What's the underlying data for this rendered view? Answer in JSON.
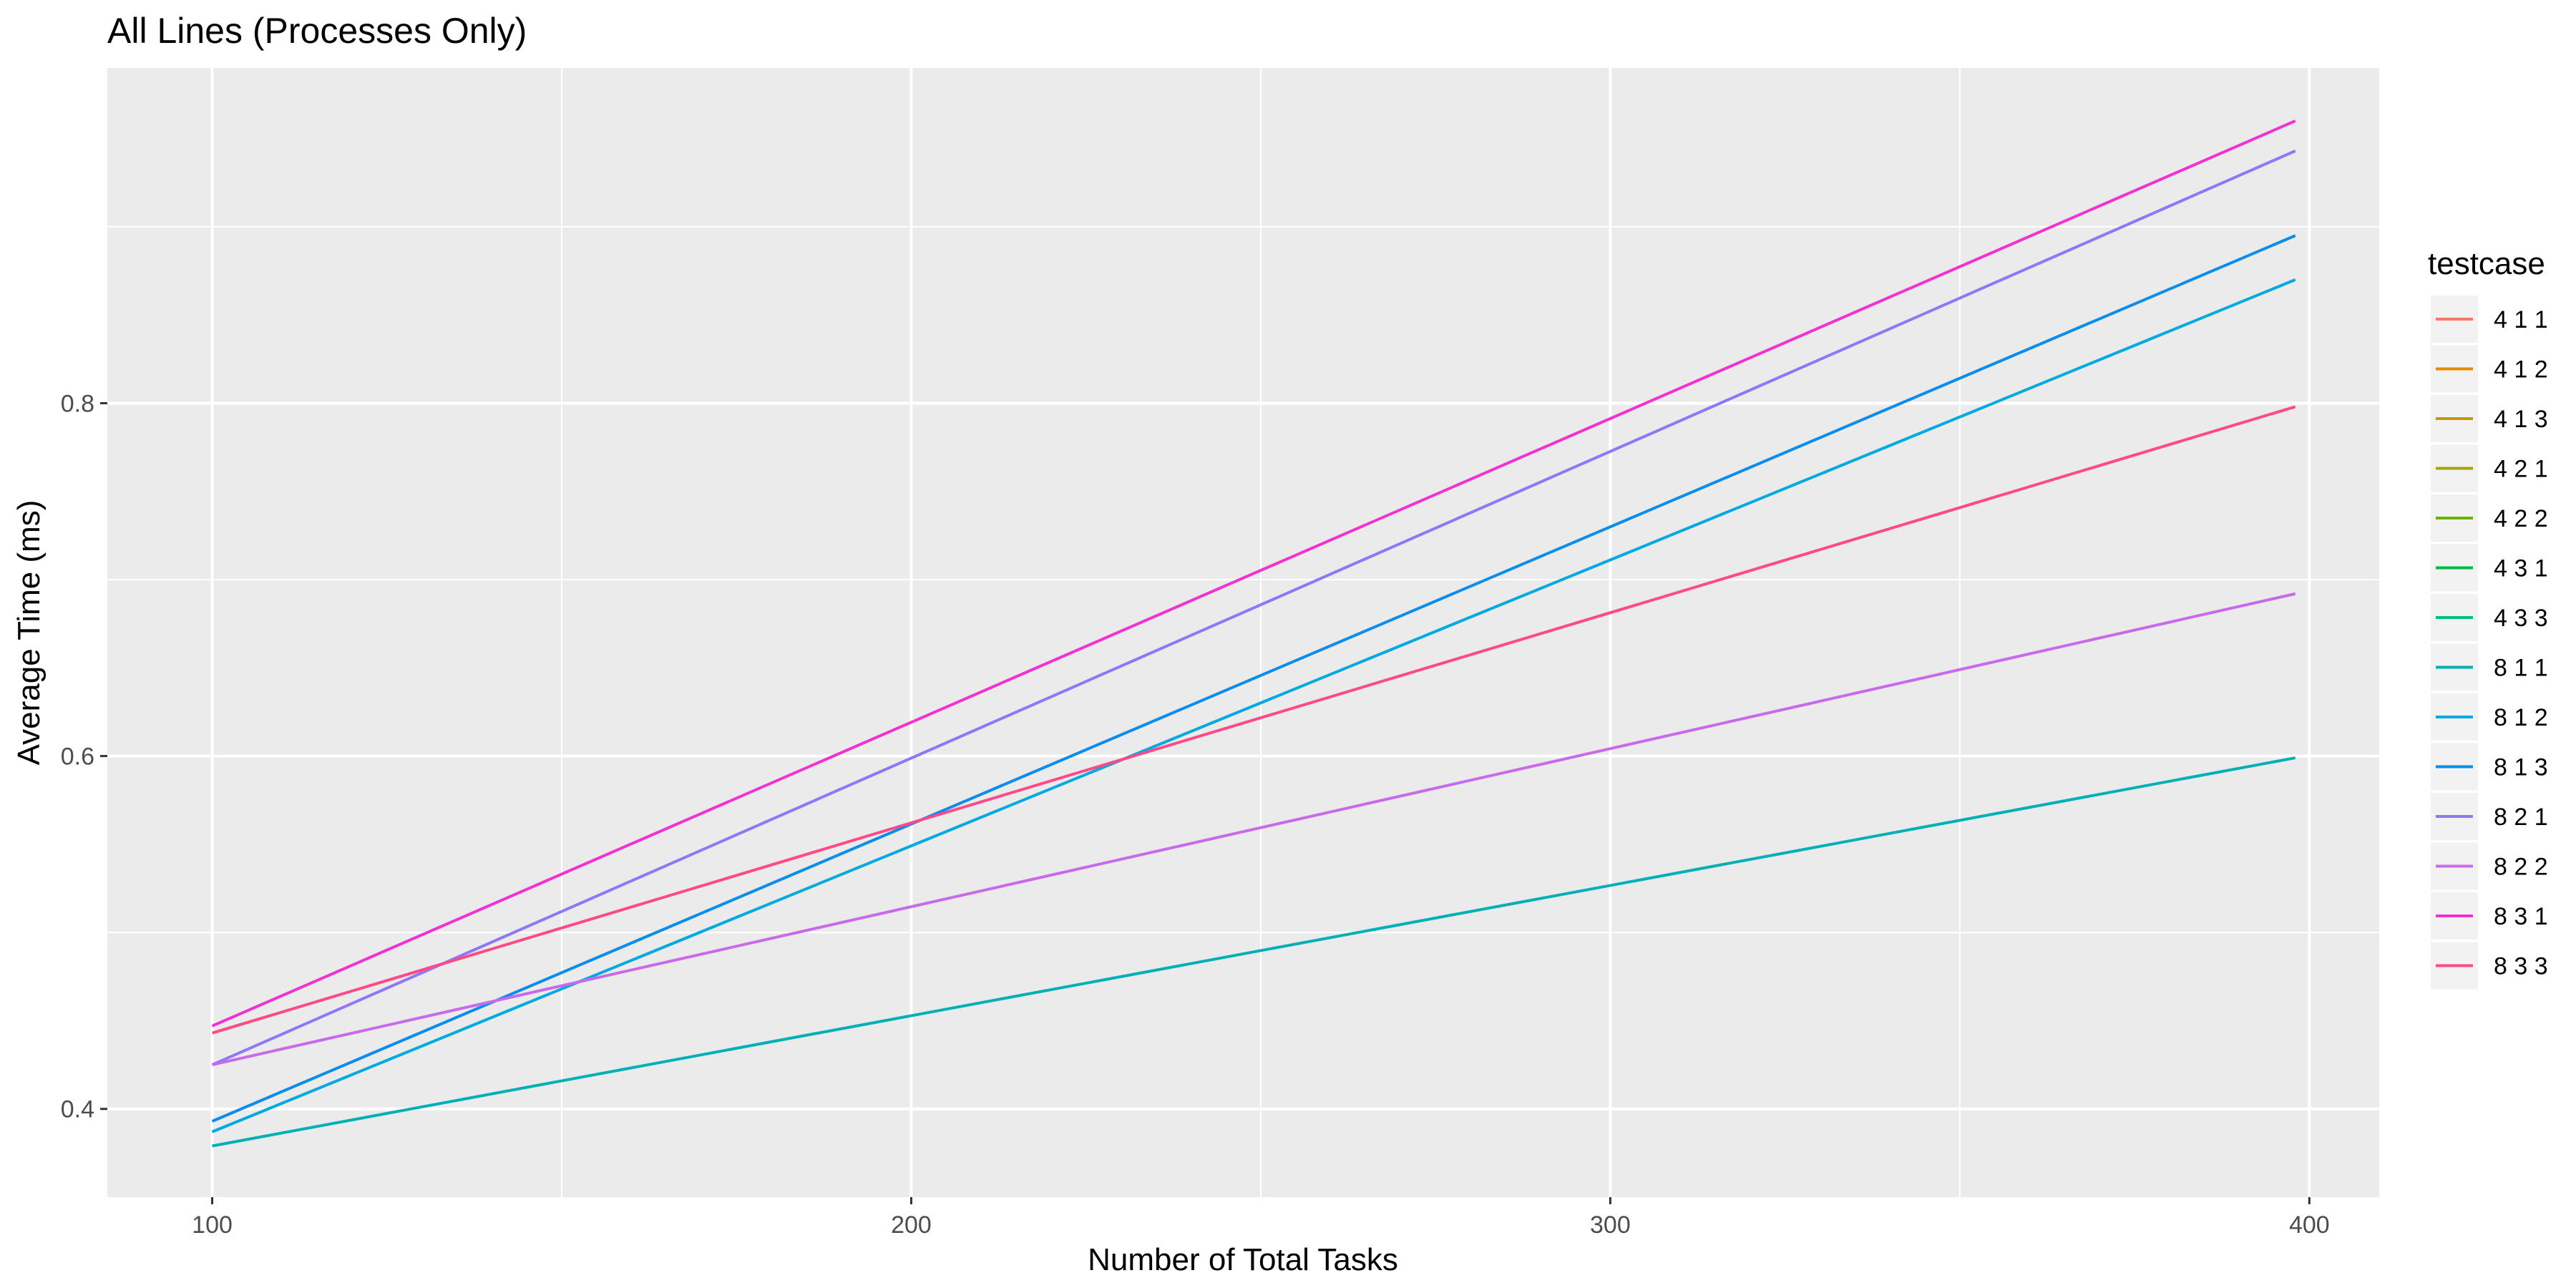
{
  "chart_data": {
    "type": "line",
    "title": "All Lines (Processes Only)",
    "xlabel": "Number of Total Tasks",
    "ylabel": "Average Time (ms)",
    "xlim": [
      85,
      410
    ],
    "ylim": [
      0.35,
      0.99
    ],
    "x_ticks": [
      100,
      200,
      300,
      400
    ],
    "y_ticks": [
      0.4,
      0.6,
      0.8
    ],
    "x_tick_labels": [
      "100",
      "200",
      "300",
      "400"
    ],
    "y_tick_labels": [
      "0.4",
      "0.6",
      "0.8"
    ],
    "grid": true,
    "legend": {
      "title": "testcase",
      "placement": "right",
      "entries": [
        {
          "name": "4 1 1",
          "color": "#F8766D"
        },
        {
          "name": "4 1 2",
          "color": "#E58700"
        },
        {
          "name": "4 1 3",
          "color": "#C99800"
        },
        {
          "name": "4 2 1",
          "color": "#A3A500"
        },
        {
          "name": "4 2 2",
          "color": "#6BB100"
        },
        {
          "name": "4 3 1",
          "color": "#00BA38"
        },
        {
          "name": "4 3 3",
          "color": "#00BF7D"
        },
        {
          "name": "8 1 1",
          "color": "#00B0B6"
        },
        {
          "name": "8 1 2",
          "color": "#00A9E0"
        },
        {
          "name": "8 1 3",
          "color": "#0C8CEB"
        },
        {
          "name": "8 2 1",
          "color": "#8F77F5"
        },
        {
          "name": "8 2 2",
          "color": "#C86AE9"
        },
        {
          "name": "8 3 1",
          "color": "#F032D0"
        },
        {
          "name": "8 3 3",
          "color": "#FF4A8A"
        }
      ]
    },
    "series": [
      {
        "name": "8 1 1",
        "color": "#00B0B6",
        "x": [
          100,
          398
        ],
        "y": [
          0.379,
          0.599
        ]
      },
      {
        "name": "8 1 2",
        "color": "#00A9E0",
        "x": [
          100,
          398
        ],
        "y": [
          0.387,
          0.87
        ]
      },
      {
        "name": "8 1 3",
        "color": "#0C8CEB",
        "x": [
          100,
          398
        ],
        "y": [
          0.393,
          0.895
        ]
      },
      {
        "name": "8 2 1",
        "color": "#8F77F5",
        "x": [
          100,
          398
        ],
        "y": [
          0.425,
          0.943
        ]
      },
      {
        "name": "8 2 2",
        "color": "#C86AE9",
        "x": [
          100,
          398
        ],
        "y": [
          0.425,
          0.692
        ]
      },
      {
        "name": "8 3 1",
        "color": "#F032D0",
        "x": [
          100,
          398
        ],
        "y": [
          0.447,
          0.96
        ]
      },
      {
        "name": "8 3 3",
        "color": "#FF4A8A",
        "x": [
          100,
          398
        ],
        "y": [
          0.443,
          0.798
        ]
      }
    ]
  }
}
